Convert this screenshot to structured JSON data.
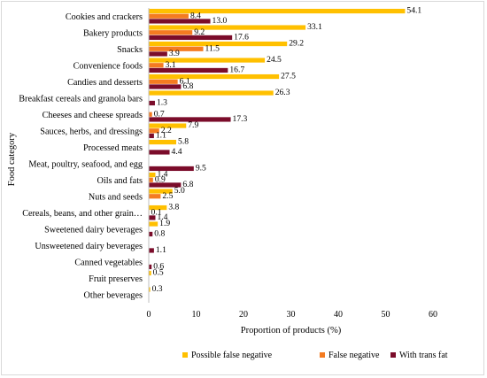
{
  "chart_data": {
    "type": "bar",
    "orientation": "horizontal",
    "categories": [
      "Cookies and crackers",
      "Bakery products",
      "Snacks",
      "Convenience foods",
      "Candies and desserts",
      "Breakfast cereals and granola bars",
      "Cheeses and cheese spreads",
      "Sauces, herbs, and dressings",
      "Processed meats",
      "Meat, poultry, seafood, and egg",
      "Oils and fats",
      "Nuts and seeds",
      "Cereals, beans, and other grain…",
      "Sweetened dairy beverages",
      "Unsweetened dairy beverages",
      "Canned vegetables",
      "Fruit preserves",
      "Other beverages"
    ],
    "series": [
      {
        "name": "Possible false negative",
        "color": "#FFC000",
        "values": [
          54.1,
          33.1,
          29.2,
          24.5,
          27.5,
          26.3,
          null,
          7.9,
          5.8,
          null,
          1.4,
          5.0,
          3.8,
          1.9,
          null,
          null,
          0.5,
          0.3
        ]
      },
      {
        "name": "False negative",
        "color": "#F47B20",
        "values": [
          8.4,
          9.2,
          11.5,
          3.1,
          6.1,
          null,
          0.7,
          2.2,
          null,
          null,
          0.9,
          2.5,
          0.1,
          null,
          null,
          null,
          null,
          null
        ]
      },
      {
        "name": "With trans fat",
        "color": "#7B0C2A",
        "values": [
          13.0,
          17.6,
          3.9,
          16.7,
          6.8,
          1.3,
          17.3,
          1.1,
          4.4,
          9.5,
          6.8,
          null,
          1.4,
          0.8,
          1.1,
          0.6,
          null,
          null
        ]
      }
    ],
    "labels": [
      [
        "54.1",
        "33.1",
        "29.2",
        "24.5",
        "27.5",
        "26.3",
        "",
        "7.9",
        "5.8",
        "",
        "1.4",
        "5.0",
        "3.8",
        "1.9",
        "",
        "",
        "0.5",
        "0.3"
      ],
      [
        "8.4",
        "9.2",
        "11.5",
        "3.1",
        "6.1",
        "",
        "0.7",
        "2.2",
        "",
        "",
        "0.9",
        "2.5",
        "0.1",
        "",
        "",
        "",
        "",
        ""
      ],
      [
        "13.0",
        "17.6",
        "3.9",
        "16.7",
        "6.8",
        "1.3",
        "17.3",
        "1.1",
        "4.4",
        "9.5",
        "6.8",
        "",
        "1.4",
        "0.8",
        "1.1",
        "0.6",
        "",
        ""
      ]
    ],
    "xlabel": "Proportion of products (%)",
    "ylabel": "Food category",
    "xlim": [
      0,
      60
    ],
    "xticks": [
      "0",
      "10",
      "20",
      "30",
      "40",
      "50",
      "60"
    ],
    "grid": false,
    "legend_position": "bottom"
  }
}
